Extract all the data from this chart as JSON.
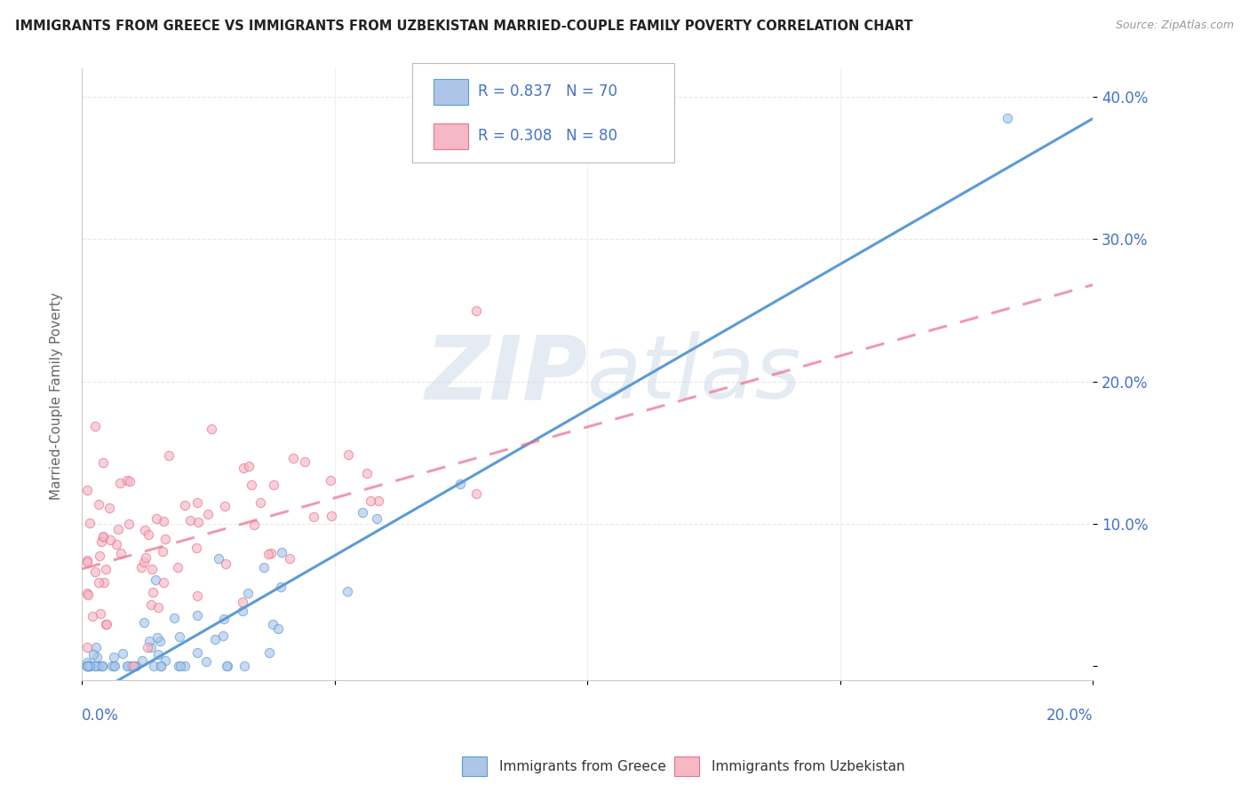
{
  "title": "IMMIGRANTS FROM GREECE VS IMMIGRANTS FROM UZBEKISTAN MARRIED-COUPLE FAMILY POVERTY CORRELATION CHART",
  "source": "Source: ZipAtlas.com",
  "ylabel": "Married-Couple Family Poverty",
  "R1": 0.837,
  "N1": 70,
  "R2": 0.308,
  "N2": 80,
  "color_blue_fill": "#adc6e8",
  "color_blue_edge": "#5b9bd5",
  "color_pink_fill": "#f5b8c4",
  "color_pink_edge": "#e87090",
  "color_blue_line": "#5b9bd5",
  "color_pink_line": "#e87090",
  "color_text_blue": "#4472c4",
  "color_grid": "#e8e8e8",
  "color_watermark": "#cdd9e8",
  "background": "#ffffff",
  "xlim": [
    0.0,
    0.2
  ],
  "ylim": [
    -0.01,
    0.42
  ],
  "yticks": [
    0.0,
    0.1,
    0.2,
    0.3,
    0.4
  ],
  "yticklabels": [
    "",
    "10.0%",
    "20.0%",
    "30.0%",
    "40.0%"
  ],
  "xticks": [
    0.0,
    0.05,
    0.1,
    0.15,
    0.2
  ],
  "legend_label1": "Immigrants from Greece",
  "legend_label2": "Immigrants from Uzbekistan",
  "scatter_size": 55,
  "scatter_alpha": 0.65,
  "line_width": 2.2,
  "blue_line_slope": 2.05,
  "blue_line_intercept": -0.025,
  "pink_line_slope": 1.0,
  "pink_line_intercept": 0.068
}
